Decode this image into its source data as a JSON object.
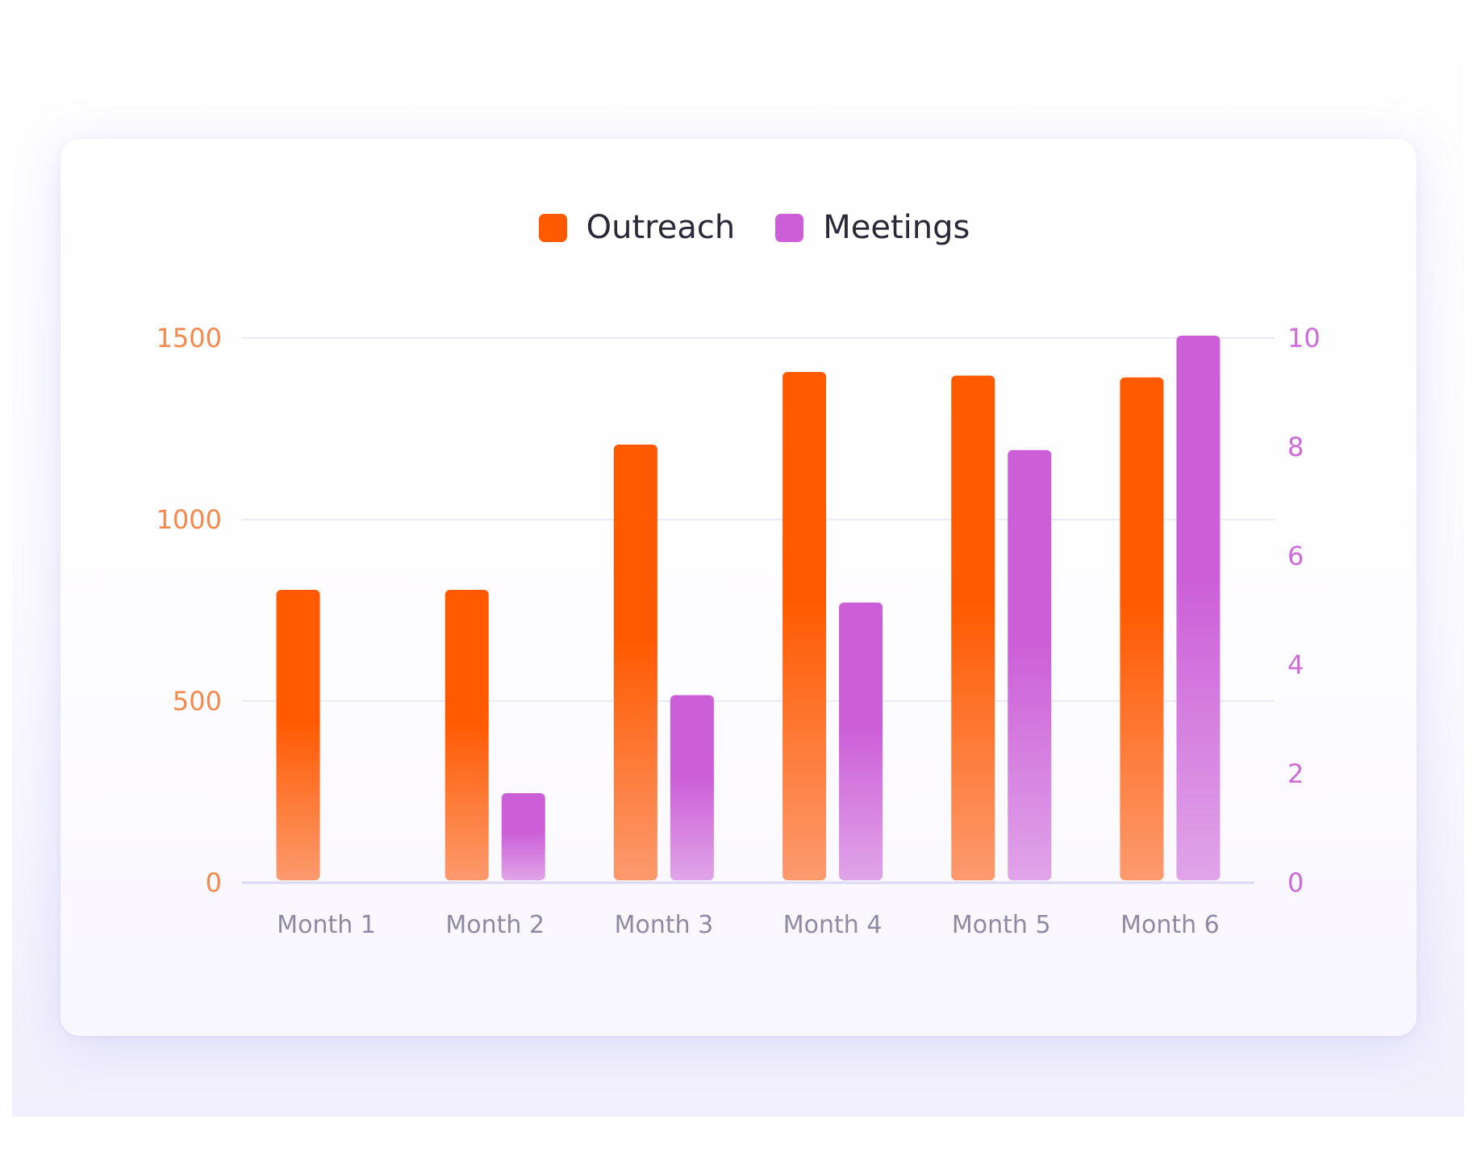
{
  "chart_data": {
    "type": "bar",
    "categories": [
      "Month 1",
      "Month 2",
      "Month 3",
      "Month 4",
      "Month 5",
      "Month 6"
    ],
    "series": [
      {
        "name": "Outreach",
        "axis": "left",
        "color": "#ff5a00",
        "color_light": "#fc9a6e",
        "values": [
          800,
          800,
          1200,
          1400,
          1390,
          1385
        ]
      },
      {
        "name": "Meetings",
        "axis": "right",
        "color": "#cc5fd8",
        "color_light": "#e0a4e8",
        "values": [
          0,
          1.6,
          3.4,
          5.1,
          7.9,
          10
        ]
      }
    ],
    "y_left": {
      "ticks": [
        "0",
        "500",
        "1000",
        "1500"
      ],
      "ylim": [
        0,
        1500
      ],
      "color": "#f5894b"
    },
    "y_right": {
      "ticks": [
        "0",
        "2",
        "4",
        "6",
        "8",
        "10"
      ],
      "ylim": [
        0,
        10
      ],
      "color": "#cf6ad9"
    },
    "legend_position": "top-center",
    "grid": true,
    "grid_color": "#ebe9fa",
    "baseline_color": "#dcdaf3"
  }
}
